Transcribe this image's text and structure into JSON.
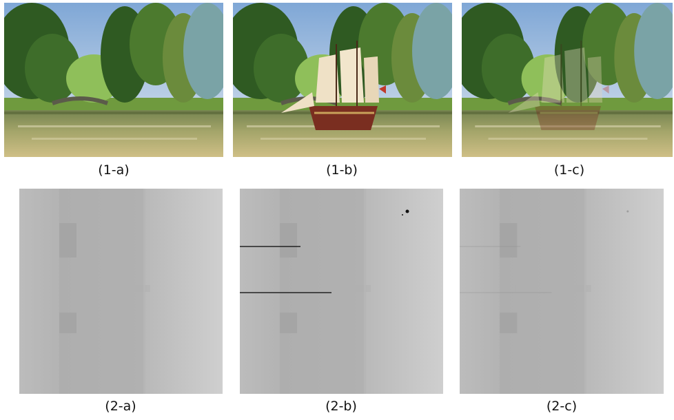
{
  "panels": {
    "p1a": {
      "caption": "(1-a)"
    },
    "p1b": {
      "caption": "(1-b)"
    },
    "p1c": {
      "caption": "(1-c)"
    },
    "p2a": {
      "caption": "(2-a)"
    },
    "p2b": {
      "caption": "(2-b)"
    },
    "p2c": {
      "caption": "(2-c)"
    }
  }
}
